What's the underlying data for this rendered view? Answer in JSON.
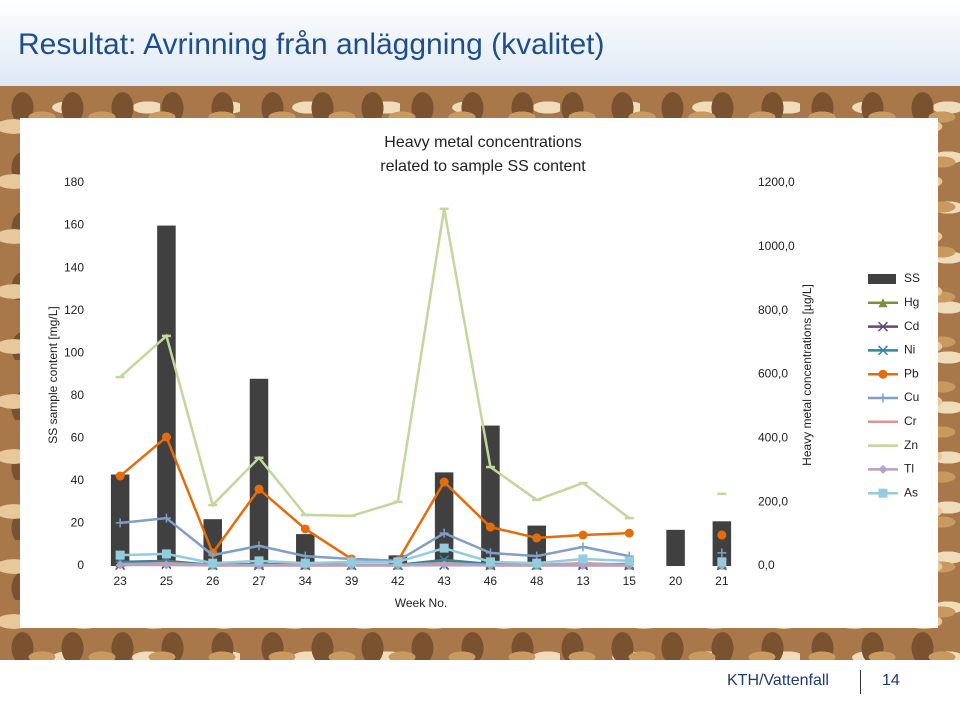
{
  "slide_title": "Resultat: Avrinning från anläggning (kvalitet)",
  "footer": {
    "text": "KTH/Vattenfall",
    "page": "14"
  },
  "chart_data": {
    "type": "bar-line",
    "title": [
      "Heavy metal concentrations",
      "related to  sample SS content"
    ],
    "xlabel": "Week No.",
    "ylabel": "SS sample content [mg/L]",
    "y2label": "Heavy metal concentrations [µg/L]",
    "categories": [
      "23",
      "25",
      "26",
      "27",
      "34",
      "39",
      "42",
      "43",
      "46",
      "48",
      "13",
      "15",
      "20",
      "21"
    ],
    "ylim": [
      0,
      180
    ],
    "yticks": [
      0,
      20,
      40,
      60,
      80,
      100,
      120,
      140,
      160,
      180
    ],
    "y2lim": [
      0,
      1200
    ],
    "y2ticks": [
      {
        "value": 0,
        "label": "0,0"
      },
      {
        "value": 200,
        "label": "200,0"
      },
      {
        "value": 400,
        "label": "400,0"
      },
      {
        "value": 600,
        "label": "600,0"
      },
      {
        "value": 800,
        "label": "800,0"
      },
      {
        "value": 1000,
        "label": "1000,0"
      },
      {
        "value": 1200,
        "label": "1200,0"
      }
    ],
    "series": [
      {
        "name": "SS",
        "kind": "bar",
        "color": "#404040",
        "values": [
          43,
          160,
          22,
          88,
          15,
          null,
          5,
          44,
          66,
          19,
          null,
          null,
          17,
          21
        ]
      },
      {
        "name": "Hg",
        "kind": "line",
        "marker": "triangle",
        "axis": "y2",
        "color": "#77933c",
        "values": [
          10,
          13,
          3,
          6,
          3,
          3,
          3,
          13,
          3,
          3,
          6,
          3,
          null,
          3
        ]
      },
      {
        "name": "Cd",
        "kind": "line",
        "marker": "x",
        "axis": "y2",
        "color": "#604a7b",
        "values": [
          3,
          6,
          2,
          2,
          2,
          2,
          2,
          3,
          2,
          2,
          2,
          2,
          null,
          2
        ]
      },
      {
        "name": "Ni",
        "kind": "line",
        "marker": "star",
        "axis": "y2",
        "color": "#31859c",
        "values": [
          13,
          16,
          3,
          6,
          6,
          3,
          3,
          19,
          6,
          3,
          6,
          6,
          null,
          6
        ]
      },
      {
        "name": "Pb",
        "kind": "line",
        "marker": "circle",
        "axis": "y2",
        "color": "#e46c0a",
        "values": [
          282,
          404,
          41,
          241,
          116,
          22,
          16,
          263,
          122,
          88,
          97,
          103,
          null,
          97
        ]
      },
      {
        "name": "Cu",
        "kind": "line",
        "marker": "plus",
        "axis": "y2",
        "color": "#7f9fc8",
        "values": [
          135,
          150,
          34,
          63,
          31,
          22,
          16,
          103,
          41,
          31,
          60,
          31,
          null,
          41
        ]
      },
      {
        "name": "Cr",
        "kind": "line",
        "marker": "none",
        "axis": "y2",
        "color": "#d99694",
        "values": [
          6,
          9,
          3,
          3,
          3,
          3,
          3,
          9,
          3,
          3,
          9,
          3,
          null,
          3
        ]
      },
      {
        "name": "Zn",
        "kind": "line",
        "marker": "dash",
        "axis": "y2",
        "color": "#c3d69b",
        "values": [
          592,
          721,
          191,
          339,
          160,
          157,
          201,
          1119,
          310,
          207,
          260,
          150,
          null,
          226
        ]
      },
      {
        "name": "Tl",
        "kind": "line",
        "marker": "diamond",
        "axis": "y2",
        "color": "#b3a2c7",
        "values": [
          3,
          3,
          2,
          2,
          2,
          2,
          2,
          3,
          2,
          2,
          2,
          2,
          null,
          2
        ]
      },
      {
        "name": "As",
        "kind": "line",
        "marker": "square",
        "axis": "y2",
        "color": "#93cddd",
        "values": [
          34,
          38,
          9,
          16,
          9,
          13,
          13,
          56,
          13,
          9,
          22,
          16,
          null,
          13
        ]
      }
    ]
  }
}
